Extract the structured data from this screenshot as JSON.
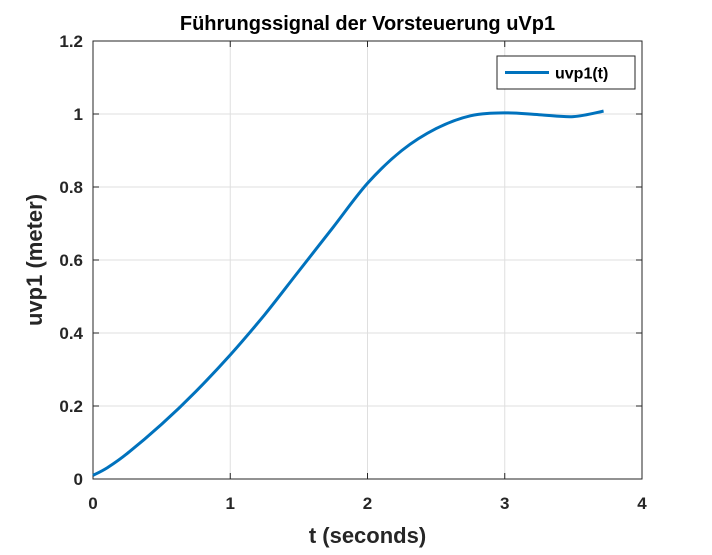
{
  "chart_data": {
    "type": "line",
    "title": "Führungssignal der Vorsteuerung uVp1",
    "xlabel": "t (seconds)",
    "ylabel": "uvp1 (meter)",
    "xlim": [
      0,
      4
    ],
    "ylim": [
      0,
      1.2
    ],
    "xticks": [
      "0",
      "1",
      "2",
      "3",
      "4"
    ],
    "yticks": [
      "0",
      "0.2",
      "0.4",
      "0.6",
      "0.8",
      "1",
      "1.2"
    ],
    "grid": true,
    "legend_position": "top-right",
    "colors": {
      "series": "#0072BD",
      "axes": "#262626",
      "grid": "#dfdfdf"
    },
    "series": [
      {
        "name": "uvp1(t)",
        "x": [
          0,
          0.1,
          0.25,
          0.5,
          0.75,
          1.0,
          1.25,
          1.5,
          1.75,
          2.0,
          2.25,
          2.5,
          2.75,
          3.0,
          3.25,
          3.5,
          3.72
        ],
        "y": [
          0.01,
          0.03,
          0.07,
          0.15,
          0.24,
          0.34,
          0.45,
          0.57,
          0.69,
          0.81,
          0.9,
          0.96,
          0.995,
          1.003,
          0.998,
          0.993,
          1.008
        ]
      }
    ]
  }
}
